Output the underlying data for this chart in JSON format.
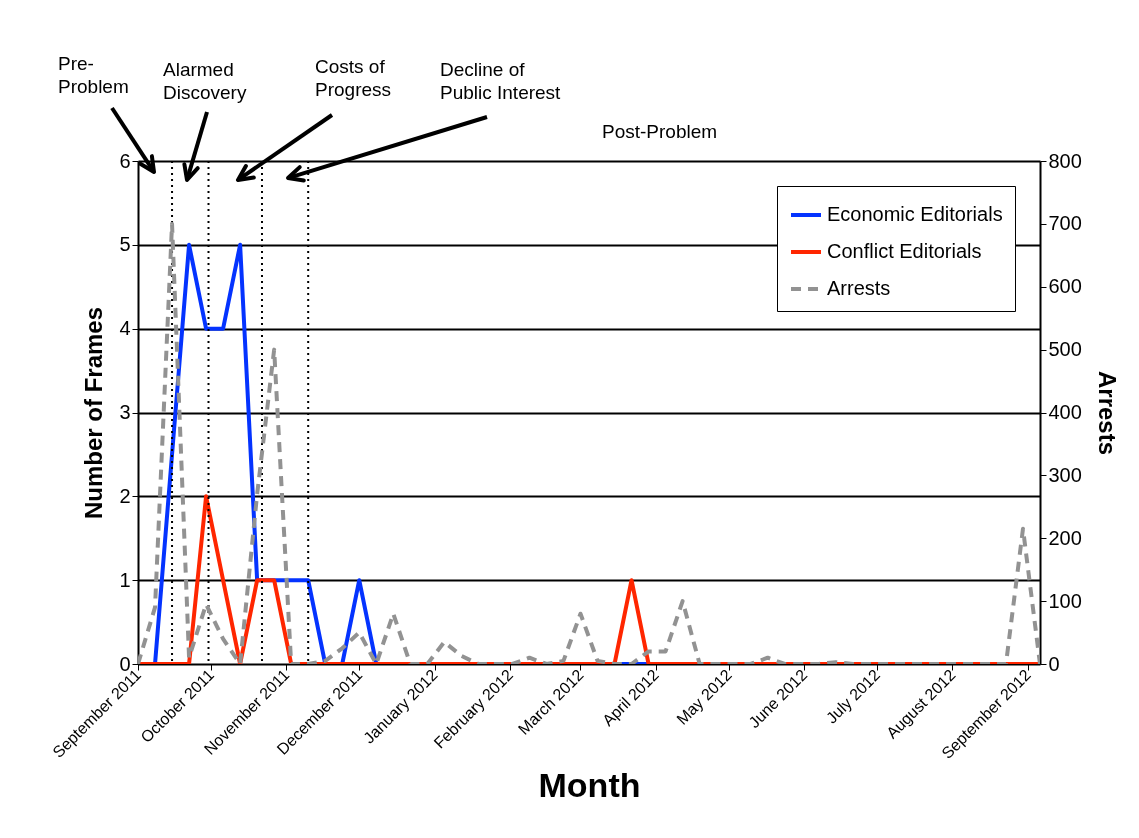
{
  "chart_data": {
    "type": "line",
    "xlabel": "Month",
    "ylabel": "Number of Frames",
    "y2label": "Arrests",
    "x": [
      "2011-09-01",
      "2011-09-08",
      "2011-09-15",
      "2011-09-22",
      "2011-09-29",
      "2011-10-06",
      "2011-10-13",
      "2011-10-20",
      "2011-10-27",
      "2011-11-03",
      "2011-11-10",
      "2011-11-17",
      "2011-11-24",
      "2011-12-01",
      "2011-12-08",
      "2011-12-15",
      "2011-12-22",
      "2011-12-29",
      "2012-01-05",
      "2012-01-12",
      "2012-01-19",
      "2012-01-26",
      "2012-02-02",
      "2012-02-09",
      "2012-02-16",
      "2012-02-23",
      "2012-03-01",
      "2012-03-08",
      "2012-03-15",
      "2012-03-22",
      "2012-03-29",
      "2012-04-05",
      "2012-04-12",
      "2012-04-19",
      "2012-04-26",
      "2012-05-03",
      "2012-05-10",
      "2012-05-17",
      "2012-05-24",
      "2012-05-31",
      "2012-06-07",
      "2012-06-14",
      "2012-06-21",
      "2012-06-28",
      "2012-07-05",
      "2012-07-12",
      "2012-07-19",
      "2012-07-26",
      "2012-08-02",
      "2012-08-09",
      "2012-08-16",
      "2012-08-23",
      "2012-08-30",
      "2012-09-06"
    ],
    "series": [
      {
        "name": "Economic Editorials",
        "color": "#0433ff",
        "line_style": "solid",
        "values": [
          0,
          0,
          2.5,
          5,
          4,
          4,
          5,
          1,
          1,
          1,
          1,
          0,
          0,
          1,
          0,
          null,
          null,
          null,
          null,
          null,
          null,
          null,
          null,
          null,
          null,
          null,
          null,
          null,
          0,
          0,
          0,
          null,
          null,
          null,
          null,
          null,
          null,
          null,
          null,
          null,
          null,
          null,
          null,
          null,
          null,
          null,
          null,
          null,
          null,
          null,
          null,
          null,
          null,
          null
        ]
      },
      {
        "name": "Conflict Editorials",
        "color": "#ff2600",
        "line_style": "solid",
        "values": [
          0,
          0,
          0,
          0,
          2,
          1,
          0,
          1,
          1,
          0,
          0,
          0,
          0,
          0,
          0,
          0,
          0,
          0,
          0,
          0,
          0,
          0,
          0,
          0,
          0,
          0,
          0,
          0,
          0,
          1,
          0,
          0,
          0,
          0,
          0,
          0,
          0,
          0,
          0,
          0,
          0,
          0,
          0,
          0,
          0,
          0,
          0,
          0,
          0,
          0,
          0,
          0,
          0,
          0
        ]
      },
      {
        "name": "Arrests",
        "color": "#929292",
        "line_style": "dashed",
        "axis": "y2",
        "values": [
          0,
          90,
          700,
          10,
          95,
          40,
          0,
          270,
          500,
          0,
          0,
          5,
          25,
          50,
          0,
          80,
          0,
          0,
          35,
          13,
          0,
          0,
          0,
          10,
          0,
          5,
          80,
          5,
          0,
          0,
          20,
          20,
          100,
          0,
          0,
          0,
          0,
          10,
          0,
          0,
          0,
          3,
          0,
          0,
          0,
          0,
          0,
          0,
          0,
          0,
          0,
          0,
          215,
          0
        ]
      }
    ],
    "xlim": [
      "2011-09-01",
      "2012-09-06"
    ],
    "xticks": [
      {
        "value": "2011-09-01",
        "label": "September 2011"
      },
      {
        "value": "2011-10-01",
        "label": "October 2011"
      },
      {
        "value": "2011-11-01",
        "label": "November 2011"
      },
      {
        "value": "2011-12-01",
        "label": "December 2011"
      },
      {
        "value": "2012-01-01",
        "label": "January 2012"
      },
      {
        "value": "2012-02-01",
        "label": "February 2012"
      },
      {
        "value": "2012-03-01",
        "label": "March 2012"
      },
      {
        "value": "2012-04-01",
        "label": "April 2012"
      },
      {
        "value": "2012-05-01",
        "label": "May 2012"
      },
      {
        "value": "2012-06-01",
        "label": "June 2012"
      },
      {
        "value": "2012-07-01",
        "label": "July 2012"
      },
      {
        "value": "2012-08-01",
        "label": "August 2012"
      },
      {
        "value": "2012-09-01",
        "label": "September 2012"
      }
    ],
    "ylim": [
      0,
      6
    ],
    "yticks": [
      0,
      1,
      2,
      3,
      4,
      5,
      6
    ],
    "y2lim": [
      0,
      800
    ],
    "y2ticks": [
      0,
      100,
      200,
      300,
      400,
      500,
      600,
      700,
      800
    ],
    "ref_lines": [
      {
        "axis": "x",
        "value": "2011-09-15",
        "color": "#000000",
        "line_style": "dotted"
      },
      {
        "axis": "x",
        "value": "2011-09-30",
        "color": "#000000",
        "line_style": "dotted"
      },
      {
        "axis": "x",
        "value": "2011-10-22",
        "color": "#000000",
        "line_style": "dotted"
      },
      {
        "axis": "x",
        "value": "2011-11-10",
        "color": "#000000",
        "line_style": "dotted"
      }
    ],
    "annotations": [
      "Pre-\nProblem",
      "Alarmed\nDiscovery",
      "Costs of\nProgress",
      "Decline of\nPublic Interest",
      "Post-Problem"
    ],
    "grid": "y",
    "legend": "top right"
  }
}
